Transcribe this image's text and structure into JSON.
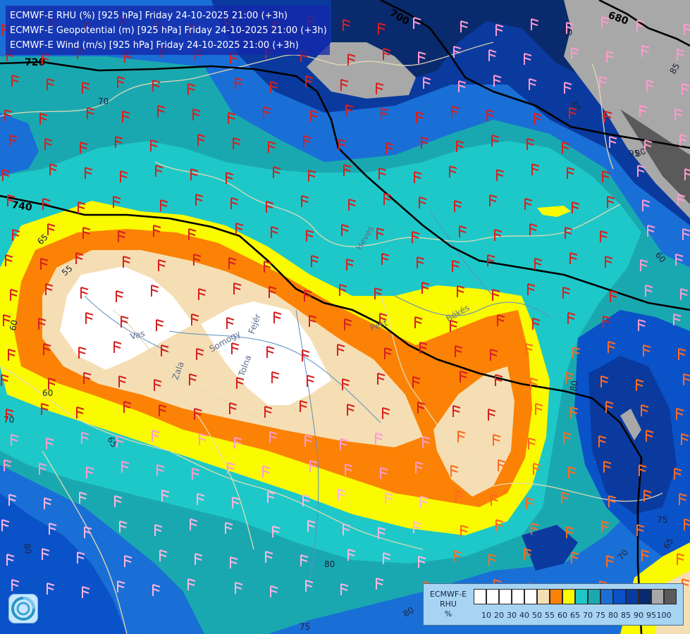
{
  "title_lines": [
    "ECMWF-E RHU (%) [925 hPa] Friday 24-10-2025 21:00 (+3h)",
    "ECMWF-E Geopotential (m) [925 hPa] Friday 24-10-2025 21:00 (+3h)",
    "ECMWF-E Wind (m/s) [925 hPa] Friday 24-10-2025 21:00 (+3h)"
  ],
  "geopotential_labels": [
    "700",
    "680",
    "720",
    "740"
  ],
  "rh_contour_labels": [
    "80",
    "70",
    "65",
    "60",
    "55",
    "60",
    "70",
    "65",
    "80",
    "85",
    "95",
    "60",
    "75",
    "85",
    "70",
    "80",
    "80",
    "75",
    "65",
    "75",
    "80",
    "80"
  ],
  "region_labels": [
    "Vas",
    "Zala",
    "Somogy",
    "Tolna",
    "Fejér",
    "Pest",
    "Békés",
    "Heves"
  ],
  "legend": {
    "title_lines": [
      "ECMWF-E",
      "RHU",
      "%"
    ],
    "colors": [
      "#ffffff",
      "#ffffff",
      "#ffffff",
      "#ffffff",
      "#ffffff",
      "#f5deb3",
      "#fb8205",
      "#fafa00",
      "#1ec8c8",
      "#1aa8b0",
      "#1a6fd6",
      "#0a52c8",
      "#0a3a9e",
      "#0a2a6e",
      "#a8a8a8",
      "#5a5a5a"
    ],
    "labels": [
      "10",
      "20",
      "30",
      "40",
      "50",
      "55",
      "60",
      "65",
      "70",
      "75",
      "80",
      "85",
      "90",
      "95",
      "100"
    ]
  },
  "palette": {
    "white": "#ffffff",
    "wheat": "#f5deb3",
    "orange": "#fb8205",
    "yellow": "#fafa00",
    "cyan": "#1ec8c8",
    "teal": "#1aa8b0",
    "blue": "#1a6fd6",
    "mid_blue": "#0a52c8",
    "navy": "#0a3a9e",
    "deep_navy": "#0a2a6e",
    "gray": "#a8a8a8",
    "dark_gray": "#5a5a5a"
  }
}
